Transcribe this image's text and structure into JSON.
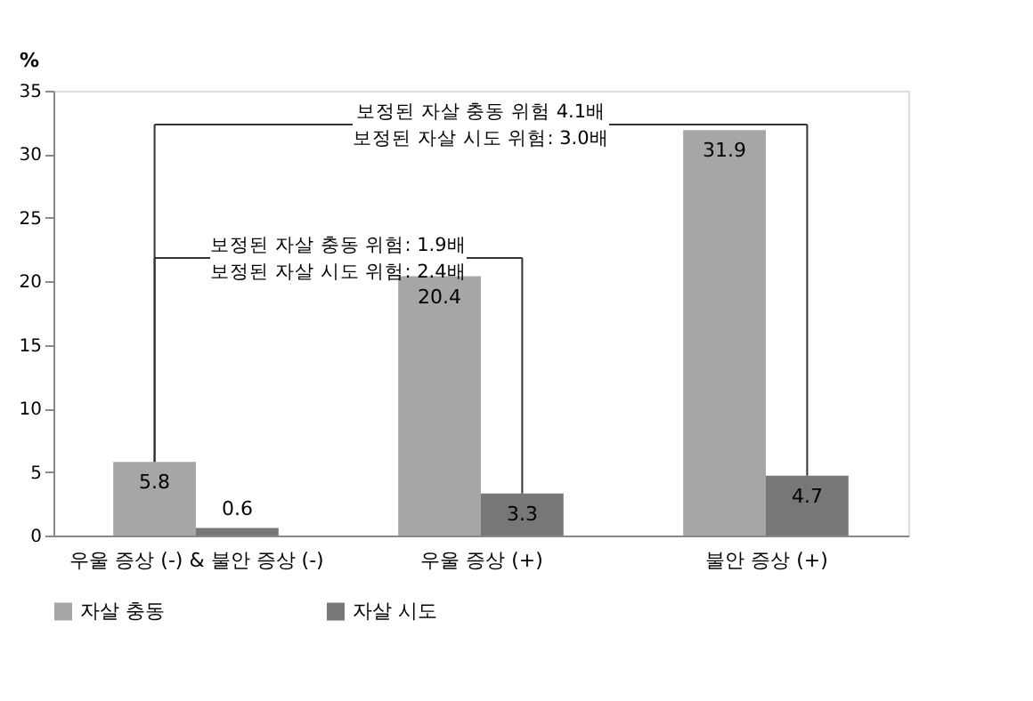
{
  "chart_data": {
    "type": "bar",
    "ylabel": "%",
    "categories": [
      "우울 증상 (-) & 불안 증상 (-)",
      "우울 증상 (+)",
      "불안 증상 (+)"
    ],
    "series": [
      {
        "name": "자살 충동",
        "color": "#a6a6a6",
        "values": [
          5.8,
          20.4,
          31.9
        ]
      },
      {
        "name": "자살 시도",
        "color": "#777777",
        "values": [
          0.6,
          3.3,
          4.7
        ]
      }
    ],
    "ylim": [
      0,
      35
    ],
    "yticks": [
      0,
      5,
      10,
      15,
      20,
      25,
      30,
      35
    ],
    "grid": false,
    "legend": "bottom",
    "data_labels": true,
    "annotations": [
      "보정된 자살 충동 위험 4.1배",
      "보정된 자살 시도 위험: 3.0배",
      "보정된 자살 충동 위험: 1.9배",
      "보정된 자살 시도 위험: 2.4배"
    ]
  }
}
